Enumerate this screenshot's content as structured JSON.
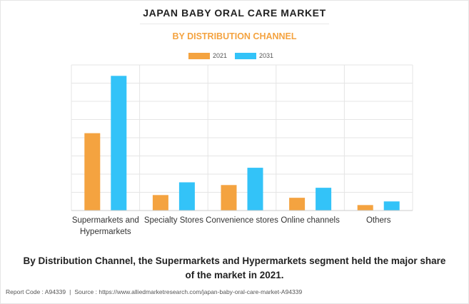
{
  "header": {
    "title": "JAPAN BABY ORAL CARE MARKET",
    "subtitle": "BY DISTRIBUTION CHANNEL"
  },
  "colors": {
    "series_2021": "#f4a340",
    "series_2031": "#33c3f8",
    "subtitle": "#f4a340",
    "grid": "#e5e5e5"
  },
  "chart_data": {
    "type": "bar",
    "title": "JAPAN BABY ORAL CARE MARKET",
    "subtitle": "BY DISTRIBUTION CHANNEL",
    "categories": [
      [
        "Supermarkets and",
        "Hypermarkets"
      ],
      [
        "Specialty Stores"
      ],
      [
        "Convenience stores"
      ],
      [
        "Online channels"
      ],
      [
        "Others"
      ]
    ],
    "series": [
      {
        "name": "2021",
        "color": "#f4a340",
        "values": [
          4.25,
          0.85,
          1.4,
          0.7,
          0.3
        ]
      },
      {
        "name": "2031",
        "color": "#33c3f8",
        "values": [
          7.4,
          1.55,
          2.35,
          1.25,
          0.5
        ]
      }
    ],
    "ylim": [
      0,
      8
    ],
    "y_gridlines": 8,
    "y_tick_labels_shown": false,
    "grid": true,
    "legend_position": "top-center"
  },
  "footnote": {
    "line1": "By Distribution Channel, the Supermarkets and Hypermarkets segment held the major share",
    "line2": "of the market in 2021."
  },
  "report": {
    "code": "Report Code : A94339",
    "separator": "|",
    "source": "Source : https://www.alliedmarketresearch.com/japan-baby-oral-care-market-A94339"
  }
}
